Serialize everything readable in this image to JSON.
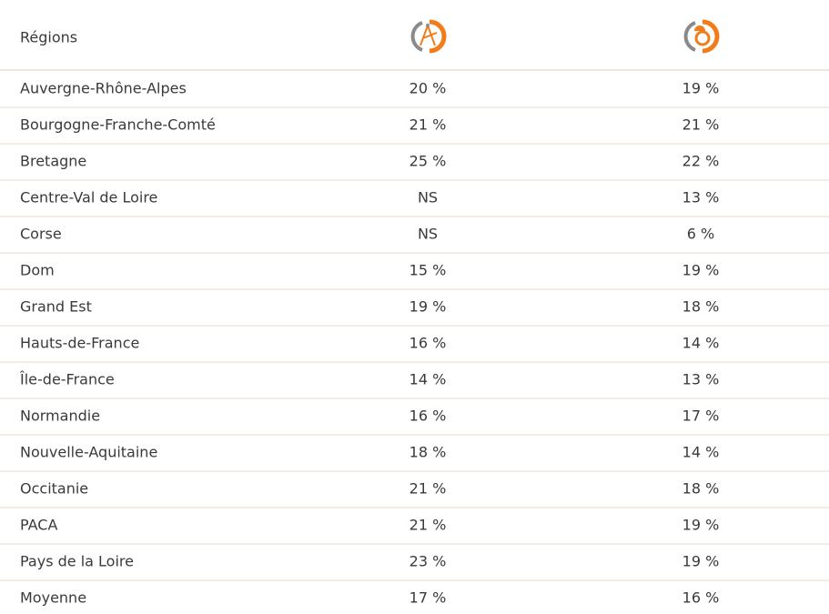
{
  "table": {
    "header": [
      "Régions"
    ],
    "rows": [
      [
        "Auvergne-Rhône-Alpes",
        "20 %",
        "19 %"
      ],
      [
        "Bourgogne-Franche-Comté",
        "21 %",
        "21 %"
      ],
      [
        "Bretagne",
        "25 %",
        "22 %"
      ],
      [
        "Centre-Val de Loire",
        "NS",
        "13 %"
      ],
      [
        "Corse",
        "NS",
        "6 %"
      ],
      [
        "Dom",
        "15 %",
        "19 %"
      ],
      [
        "Grand Est",
        "19 %",
        "18 %"
      ],
      [
        "Hauts-de-France",
        "16 %",
        "14 %"
      ],
      [
        "Île-de-France",
        "14 %",
        "13 %"
      ],
      [
        "Normandie",
        "16 %",
        "17 %"
      ],
      [
        "Nouvelle-Aquitaine",
        "18 %",
        "14 %"
      ],
      [
        "Occitanie",
        "21 %",
        "18 %"
      ],
      [
        "PACA",
        "21 %",
        "19 %"
      ],
      [
        "Pays de la Loire",
        "23 %",
        "19 %"
      ],
      [
        "Moyenne",
        "17 %",
        "16 %"
      ]
    ]
  }
}
